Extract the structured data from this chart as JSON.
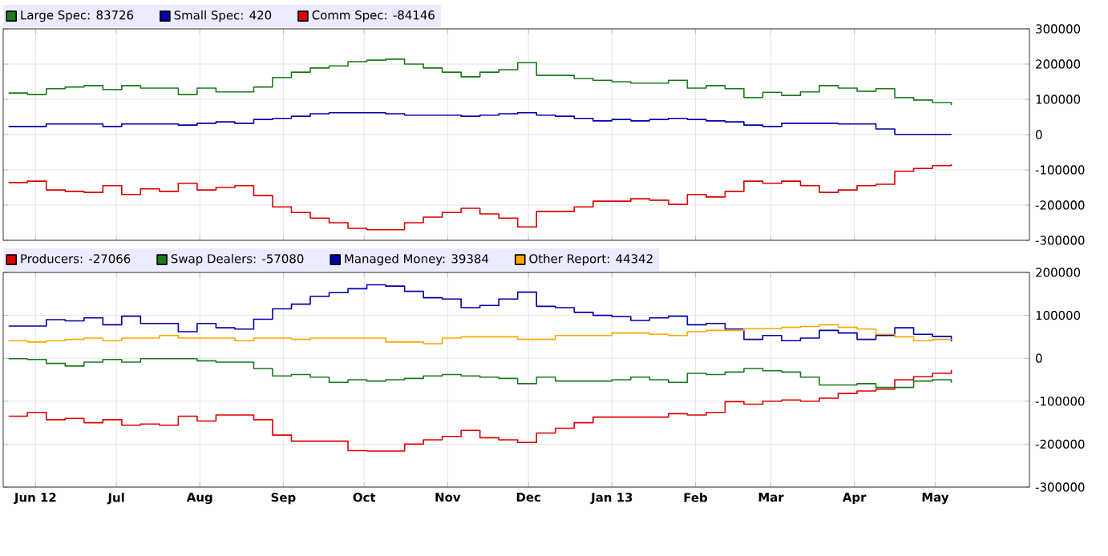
{
  "chart_data": [
    {
      "type": "step",
      "line_style": "solid",
      "grid": true,
      "legend": "top",
      "tick_labels": "y",
      "x": [
        "2012-05-22",
        "2012-05-29",
        "2012-06-05",
        "2012-06-12",
        "2012-06-19",
        "2012-06-26",
        "2012-07-03",
        "2012-07-10",
        "2012-07-17",
        "2012-07-24",
        "2012-07-31",
        "2012-08-07",
        "2012-08-14",
        "2012-08-21",
        "2012-08-28",
        "2012-09-04",
        "2012-09-11",
        "2012-09-18",
        "2012-09-25",
        "2012-10-02",
        "2012-10-09",
        "2012-10-16",
        "2012-10-23",
        "2012-10-30",
        "2012-11-06",
        "2012-11-13",
        "2012-11-20",
        "2012-11-27",
        "2012-12-04",
        "2012-12-11",
        "2012-12-18",
        "2012-12-25",
        "2013-01-01",
        "2013-01-08",
        "2013-01-15",
        "2013-01-22",
        "2013-01-29",
        "2013-02-05",
        "2013-02-12",
        "2013-02-19",
        "2013-02-26",
        "2013-03-05",
        "2013-03-12",
        "2013-03-19",
        "2013-03-26",
        "2013-04-02",
        "2013-04-09",
        "2013-04-16",
        "2013-04-23",
        "2013-04-30",
        "2013-05-07"
      ],
      "xlim": [
        "2012-05-20",
        "2013-06-05"
      ],
      "xticks": [
        {
          "value": "2012-06-01",
          "label": null
        },
        {
          "value": "2012-07-01",
          "label": null
        },
        {
          "value": "2012-08-01",
          "label": null
        },
        {
          "value": "2012-09-01",
          "label": null
        },
        {
          "value": "2012-10-01",
          "label": null
        },
        {
          "value": "2012-11-01",
          "label": null
        },
        {
          "value": "2012-12-01",
          "label": null
        },
        {
          "value": "2013-01-01",
          "label": null
        },
        {
          "value": "2013-02-01",
          "label": null
        },
        {
          "value": "2013-03-01",
          "label": null
        },
        {
          "value": "2013-04-01",
          "label": null
        },
        {
          "value": "2013-05-01",
          "label": null
        }
      ],
      "ylim": [
        -300000,
        300000
      ],
      "yticks": [
        -300000,
        -200000,
        -100000,
        0,
        100000,
        200000,
        300000
      ],
      "series": [
        {
          "name": "Large Spec: 83726",
          "color": "#1a7a1a",
          "values": [
            118000,
            114000,
            130000,
            135000,
            139000,
            128000,
            139000,
            132000,
            132000,
            114000,
            132000,
            121000,
            121000,
            135000,
            162000,
            177000,
            189000,
            195000,
            207000,
            211000,
            214000,
            200000,
            189000,
            177000,
            164000,
            177000,
            184000,
            204000,
            168000,
            168000,
            159000,
            154000,
            150000,
            146000,
            146000,
            154000,
            132000,
            139000,
            130000,
            105000,
            120000,
            111000,
            121000,
            139000,
            132000,
            123000,
            130000,
            105000,
            98000,
            91000,
            83726
          ]
        },
        {
          "name": "Small Spec: 420",
          "color": "#0000aa",
          "values": [
            23000,
            23000,
            30000,
            30000,
            30000,
            23000,
            30000,
            30000,
            30000,
            27000,
            32000,
            36000,
            32000,
            43000,
            46000,
            52000,
            59000,
            62000,
            62000,
            62000,
            59000,
            55000,
            55000,
            55000,
            52000,
            55000,
            59000,
            62000,
            55000,
            52000,
            46000,
            39000,
            43000,
            39000,
            43000,
            46000,
            43000,
            39000,
            36000,
            27000,
            23000,
            32000,
            32000,
            32000,
            30000,
            30000,
            16000,
            500,
            500,
            500,
            420
          ]
        },
        {
          "name": "Comm Spec: -84146",
          "color": "#dd0000",
          "values": [
            -136000,
            -132000,
            -157000,
            -161000,
            -164000,
            -145000,
            -170000,
            -154000,
            -161000,
            -138000,
            -157000,
            -150000,
            -145000,
            -173000,
            -205000,
            -221000,
            -237000,
            -250000,
            -266000,
            -270000,
            -270000,
            -250000,
            -234000,
            -221000,
            -209000,
            -225000,
            -237000,
            -262000,
            -218000,
            -218000,
            -205000,
            -189000,
            -189000,
            -182000,
            -186000,
            -198000,
            -170000,
            -177000,
            -161000,
            -132000,
            -138000,
            -132000,
            -145000,
            -164000,
            -157000,
            -145000,
            -141000,
            -104000,
            -96000,
            -88000,
            -84146
          ]
        }
      ]
    },
    {
      "type": "step",
      "line_style": "solid",
      "grid": true,
      "legend": "top",
      "x": [
        "2012-05-22",
        "2012-05-29",
        "2012-06-05",
        "2012-06-12",
        "2012-06-19",
        "2012-06-26",
        "2012-07-03",
        "2012-07-10",
        "2012-07-17",
        "2012-07-24",
        "2012-07-31",
        "2012-08-07",
        "2012-08-14",
        "2012-08-21",
        "2012-08-28",
        "2012-09-04",
        "2012-09-11",
        "2012-09-18",
        "2012-09-25",
        "2012-10-02",
        "2012-10-09",
        "2012-10-16",
        "2012-10-23",
        "2012-10-30",
        "2012-11-06",
        "2012-11-13",
        "2012-11-20",
        "2012-11-27",
        "2012-12-04",
        "2012-12-11",
        "2012-12-18",
        "2012-12-25",
        "2013-01-01",
        "2013-01-08",
        "2013-01-15",
        "2013-01-22",
        "2013-01-29",
        "2013-02-05",
        "2013-02-12",
        "2013-02-19",
        "2013-02-26",
        "2013-03-05",
        "2013-03-12",
        "2013-03-19",
        "2013-03-26",
        "2013-04-02",
        "2013-04-09",
        "2013-04-16",
        "2013-04-23",
        "2013-04-30",
        "2013-05-07"
      ],
      "xlim": [
        "2012-05-20",
        "2013-06-05"
      ],
      "xticks": [
        {
          "value": "2012-06-01",
          "label": "Jun 12"
        },
        {
          "value": "2012-07-01",
          "label": "Jul"
        },
        {
          "value": "2012-08-01",
          "label": "Aug"
        },
        {
          "value": "2012-09-01",
          "label": "Sep"
        },
        {
          "value": "2012-10-01",
          "label": "Oct"
        },
        {
          "value": "2012-11-01",
          "label": "Nov"
        },
        {
          "value": "2012-12-01",
          "label": "Dec"
        },
        {
          "value": "2013-01-01",
          "label": "Jan 13"
        },
        {
          "value": "2013-02-01",
          "label": "Feb"
        },
        {
          "value": "2013-03-01",
          "label": "Mar"
        },
        {
          "value": "2013-04-01",
          "label": "Apr"
        },
        {
          "value": "2013-05-01",
          "label": "May"
        }
      ],
      "ylim": [
        -300000,
        200000
      ],
      "yticks": [
        -300000,
        -200000,
        -100000,
        0,
        100000,
        200000
      ],
      "series": [
        {
          "name": "Producers: -27066",
          "color": "#dd0000",
          "values": [
            -135000,
            -126000,
            -143000,
            -140000,
            -150000,
            -143000,
            -156000,
            -153000,
            -156000,
            -135000,
            -146000,
            -132000,
            -132000,
            -143000,
            -179000,
            -193000,
            -193000,
            -193000,
            -215000,
            -216000,
            -216000,
            -200000,
            -190000,
            -182000,
            -168000,
            -185000,
            -190000,
            -196000,
            -174000,
            -163000,
            -150000,
            -137000,
            -137000,
            -137000,
            -137000,
            -129000,
            -132000,
            -126000,
            -101000,
            -107000,
            -100000,
            -97000,
            -100000,
            -93000,
            -82000,
            -76000,
            -72000,
            -50000,
            -43000,
            -35000,
            -27066
          ]
        },
        {
          "name": "Swap Dealers: -57080",
          "color": "#1a7a1a",
          "values": [
            -1000,
            -3000,
            -12000,
            -18000,
            -9000,
            -3000,
            -9000,
            -1000,
            -1000,
            -1000,
            -6000,
            -9000,
            -9000,
            -24000,
            -41000,
            -38000,
            -44000,
            -56000,
            -50000,
            -53000,
            -50000,
            -47000,
            -41000,
            -38000,
            -41000,
            -44000,
            -47000,
            -59000,
            -44000,
            -53000,
            -53000,
            -53000,
            -50000,
            -44000,
            -50000,
            -56000,
            -35000,
            -38000,
            -32000,
            -24000,
            -29000,
            -32000,
            -44000,
            -62000,
            -62000,
            -59000,
            -68000,
            -68000,
            -53000,
            -50000,
            -57080
          ]
        },
        {
          "name": "Managed Money: 39384",
          "color": "#0000aa",
          "values": [
            75000,
            75000,
            90000,
            87000,
            94000,
            78000,
            98000,
            81000,
            81000,
            62000,
            81000,
            71000,
            68000,
            91000,
            115000,
            126000,
            144000,
            153000,
            162000,
            171000,
            168000,
            156000,
            141000,
            138000,
            118000,
            123000,
            138000,
            154000,
            121000,
            118000,
            107000,
            100000,
            97000,
            88000,
            94000,
            98000,
            78000,
            81000,
            68000,
            44000,
            53000,
            41000,
            47000,
            65000,
            59000,
            44000,
            53000,
            71000,
            56000,
            51000,
            39384
          ]
        },
        {
          "name": "Other Report: 44342",
          "color": "#ffa500",
          "values": [
            41000,
            38000,
            41000,
            44000,
            47000,
            41000,
            47000,
            47000,
            53000,
            47000,
            47000,
            47000,
            41000,
            47000,
            47000,
            44000,
            47000,
            47000,
            47000,
            47000,
            38000,
            38000,
            34000,
            47000,
            50000,
            50000,
            50000,
            44000,
            44000,
            53000,
            53000,
            53000,
            59000,
            59000,
            56000,
            53000,
            62000,
            65000,
            65000,
            69000,
            69000,
            72000,
            74000,
            78000,
            72000,
            68000,
            56000,
            50000,
            41000,
            44000,
            44342
          ]
        }
      ]
    }
  ]
}
